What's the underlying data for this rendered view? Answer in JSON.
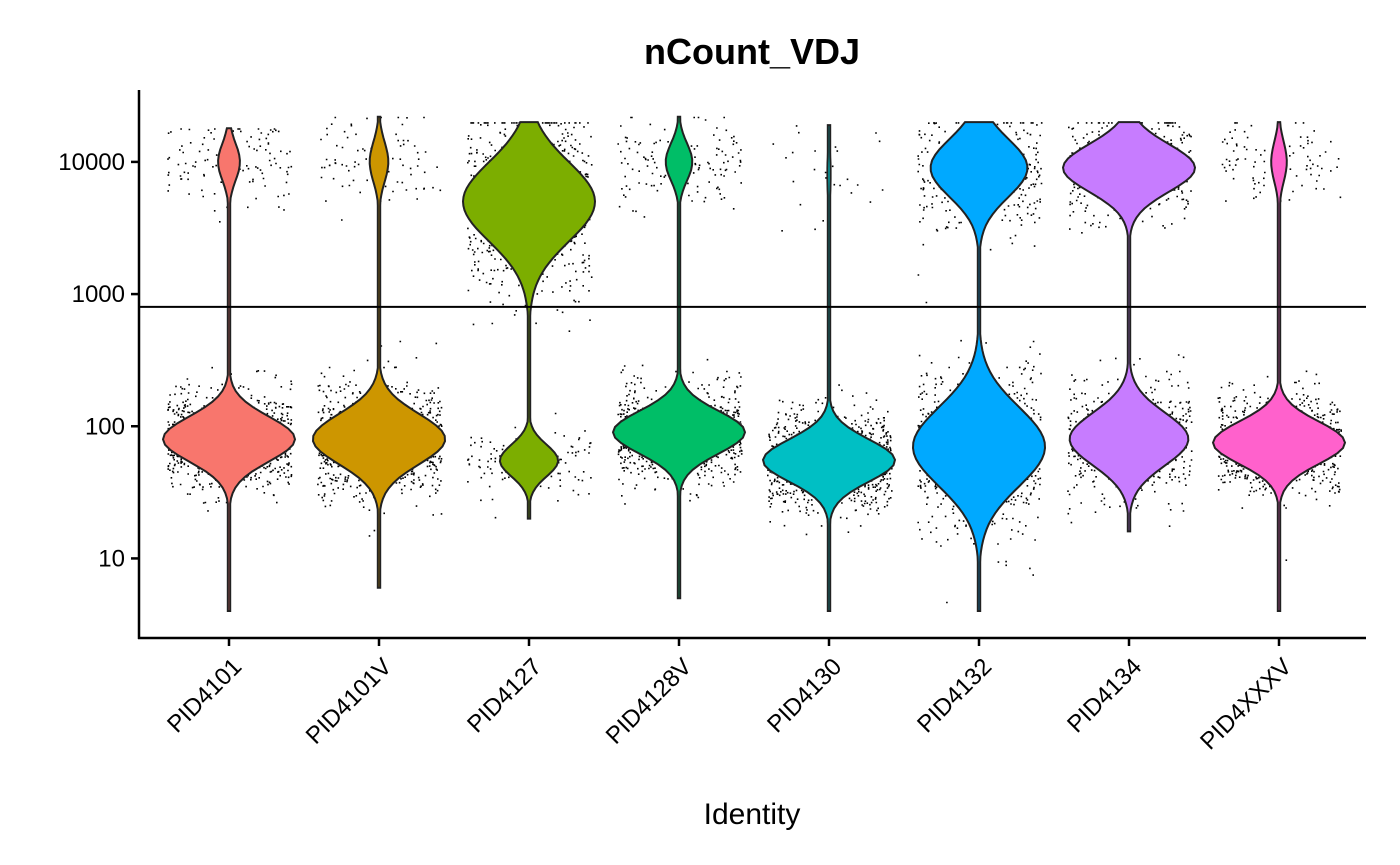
{
  "chart_data": {
    "type": "violin",
    "title": "nCount_VDJ",
    "xlabel": "Identity",
    "ylabel": "",
    "yscale": "log10",
    "ylim": [
      2.5,
      35000
    ],
    "yticks": [
      10,
      100,
      1000,
      10000
    ],
    "ytick_labels": [
      "10",
      "100",
      "1000",
      "10000"
    ],
    "hline": 800,
    "grid": false,
    "legend": "none",
    "categories": [
      "PID4101",
      "PID4101V",
      "PID4127",
      "PID4128V",
      "PID4130",
      "PID4132",
      "PID4134",
      "PID4XXXV"
    ],
    "colors": [
      "#F8766D",
      "#CD9600",
      "#7CAE00",
      "#00BE67",
      "#00BFC4",
      "#00A9FF",
      "#C77CFF",
      "#FF61CC"
    ],
    "series": [
      {
        "category": "PID4101",
        "median": 80,
        "min": 4,
        "max": 18000,
        "modes": [
          {
            "value": 80,
            "sigma": 0.17,
            "weight": 0.88
          },
          {
            "value": 10000,
            "sigma": 0.14,
            "weight": 0.12
          }
        ]
      },
      {
        "category": "PID4101V",
        "median": 80,
        "min": 6,
        "max": 22000,
        "modes": [
          {
            "value": 80,
            "sigma": 0.19,
            "weight": 0.9
          },
          {
            "value": 10000,
            "sigma": 0.15,
            "weight": 0.1
          }
        ]
      },
      {
        "category": "PID4127",
        "median": 3500,
        "min": 20,
        "max": 20000,
        "modes": [
          {
            "value": 5000,
            "sigma": 0.3,
            "weight": 0.85
          },
          {
            "value": 55,
            "sigma": 0.12,
            "weight": 0.15
          }
        ]
      },
      {
        "category": "PID4128V",
        "median": 90,
        "min": 5,
        "max": 22000,
        "modes": [
          {
            "value": 90,
            "sigma": 0.16,
            "weight": 0.85
          },
          {
            "value": 10000,
            "sigma": 0.14,
            "weight": 0.15
          }
        ]
      },
      {
        "category": "PID4130",
        "median": 55,
        "min": 4,
        "max": 19000,
        "modes": [
          {
            "value": 55,
            "sigma": 0.16,
            "weight": 0.97
          },
          {
            "value": 8000,
            "sigma": 0.2,
            "weight": 0.03
          }
        ]
      },
      {
        "category": "PID4132",
        "median": 120,
        "min": 4,
        "max": 20000,
        "modes": [
          {
            "value": 70,
            "sigma": 0.3,
            "weight": 0.65
          },
          {
            "value": 9000,
            "sigma": 0.22,
            "weight": 0.35
          }
        ]
      },
      {
        "category": "PID4134",
        "median": 800,
        "min": 16,
        "max": 20000,
        "modes": [
          {
            "value": 80,
            "sigma": 0.2,
            "weight": 0.5
          },
          {
            "value": 9000,
            "sigma": 0.18,
            "weight": 0.5
          }
        ]
      },
      {
        "category": "PID4XXXV",
        "median": 75,
        "min": 4,
        "max": 20000,
        "modes": [
          {
            "value": 75,
            "sigma": 0.16,
            "weight": 0.9
          },
          {
            "value": 10000,
            "sigma": 0.15,
            "weight": 0.1
          }
        ]
      }
    ]
  }
}
